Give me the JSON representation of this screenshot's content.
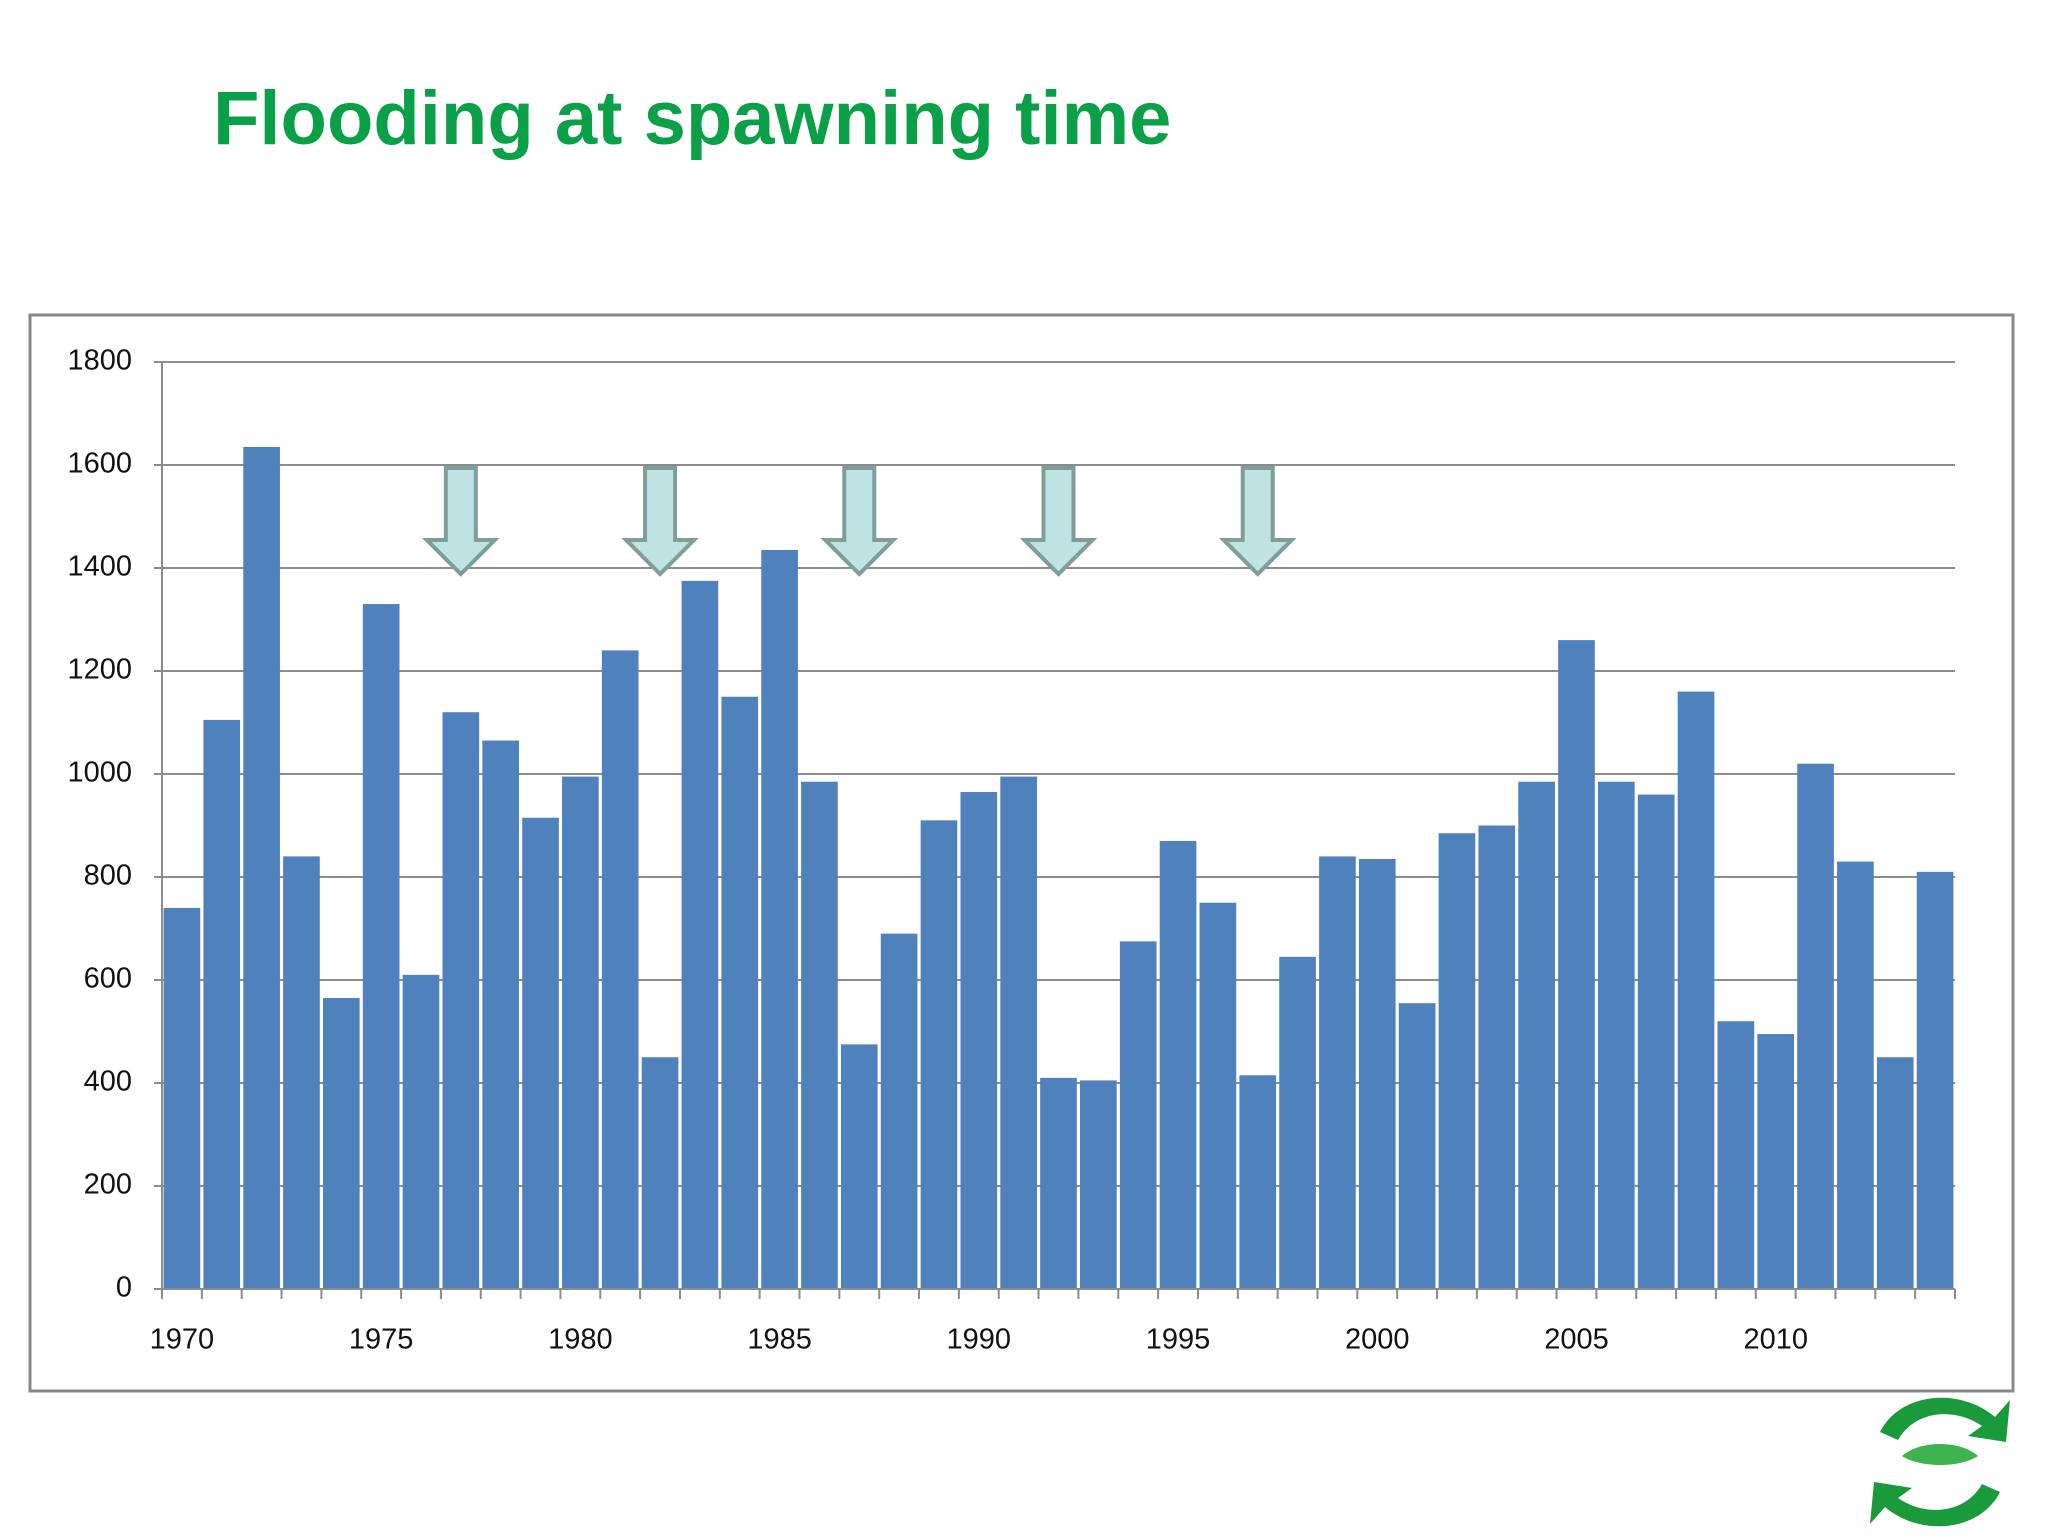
{
  "chart_data": {
    "type": "bar",
    "title": "Flooding at spawning time",
    "categories": [
      "1970",
      null,
      null,
      null,
      null,
      "1975",
      null,
      null,
      null,
      null,
      "1980",
      null,
      null,
      null,
      null,
      "1985",
      null,
      null,
      null,
      null,
      "1990",
      null,
      null,
      null,
      null,
      "1995",
      null,
      null,
      null,
      null,
      "2000",
      null,
      null,
      null,
      null,
      "2005",
      null,
      null,
      null,
      null,
      "2010",
      null,
      null,
      null,
      null
    ],
    "values": [
      740,
      1105,
      1635,
      840,
      565,
      1330,
      610,
      1120,
      1065,
      915,
      995,
      1240,
      450,
      1375,
      1150,
      1435,
      985,
      475,
      690,
      910,
      965,
      995,
      410,
      405,
      675,
      870,
      750,
      415,
      645,
      840,
      835,
      555,
      885,
      900,
      985,
      1260,
      985,
      960,
      1160,
      520,
      495,
      1020,
      830,
      450,
      810
    ],
    "color": "#4f81bd",
    "ylim": [
      0,
      1800
    ],
    "yticks": [
      0,
      200,
      400,
      600,
      800,
      1000,
      1200,
      1400,
      1600,
      1800
    ],
    "grid": true
  }
}
